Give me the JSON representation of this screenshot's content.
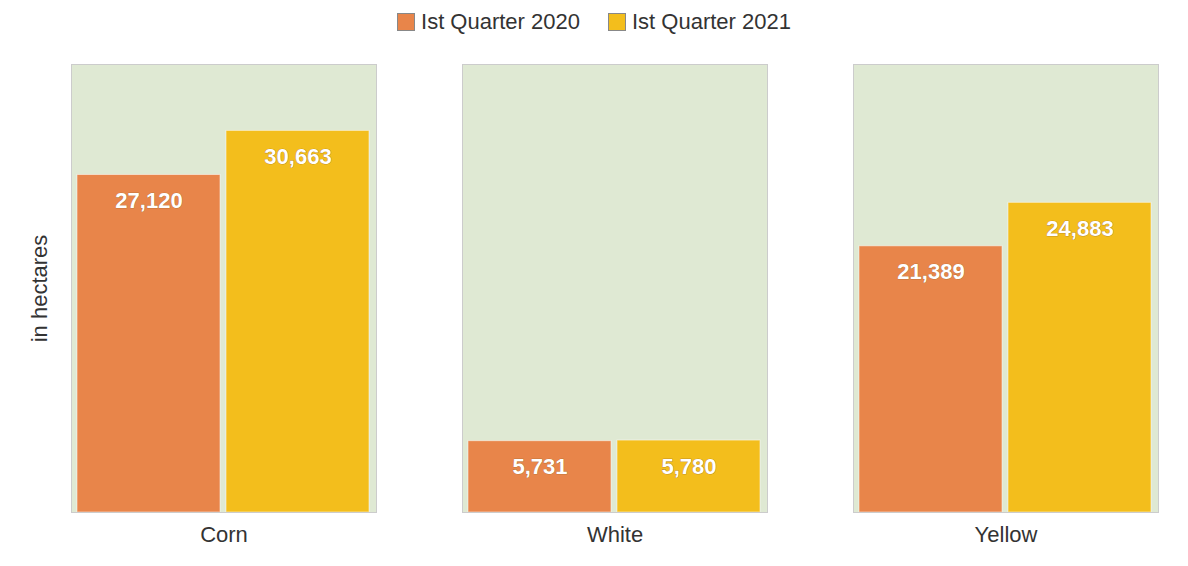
{
  "chart_data": {
    "type": "bar",
    "categories": [
      "Corn",
      "White",
      "Yellow"
    ],
    "series": [
      {
        "name": "Ist Quarter 2020",
        "color": "#E8854A",
        "values": [
          27120,
          5731,
          21389
        ],
        "value_labels": [
          "27,120",
          "5,731",
          "21,389"
        ]
      },
      {
        "name": "Ist Quarter 2021",
        "color": "#F3BE1C",
        "values": [
          30663,
          5780,
          24883
        ],
        "value_labels": [
          "30,663",
          "5,780",
          "24,883"
        ]
      }
    ],
    "y_label": "in hectares",
    "ylim": [
      0,
      36000
    ],
    "tick_labels": "x",
    "legend": "top",
    "data_labels": true,
    "grid": false
  }
}
